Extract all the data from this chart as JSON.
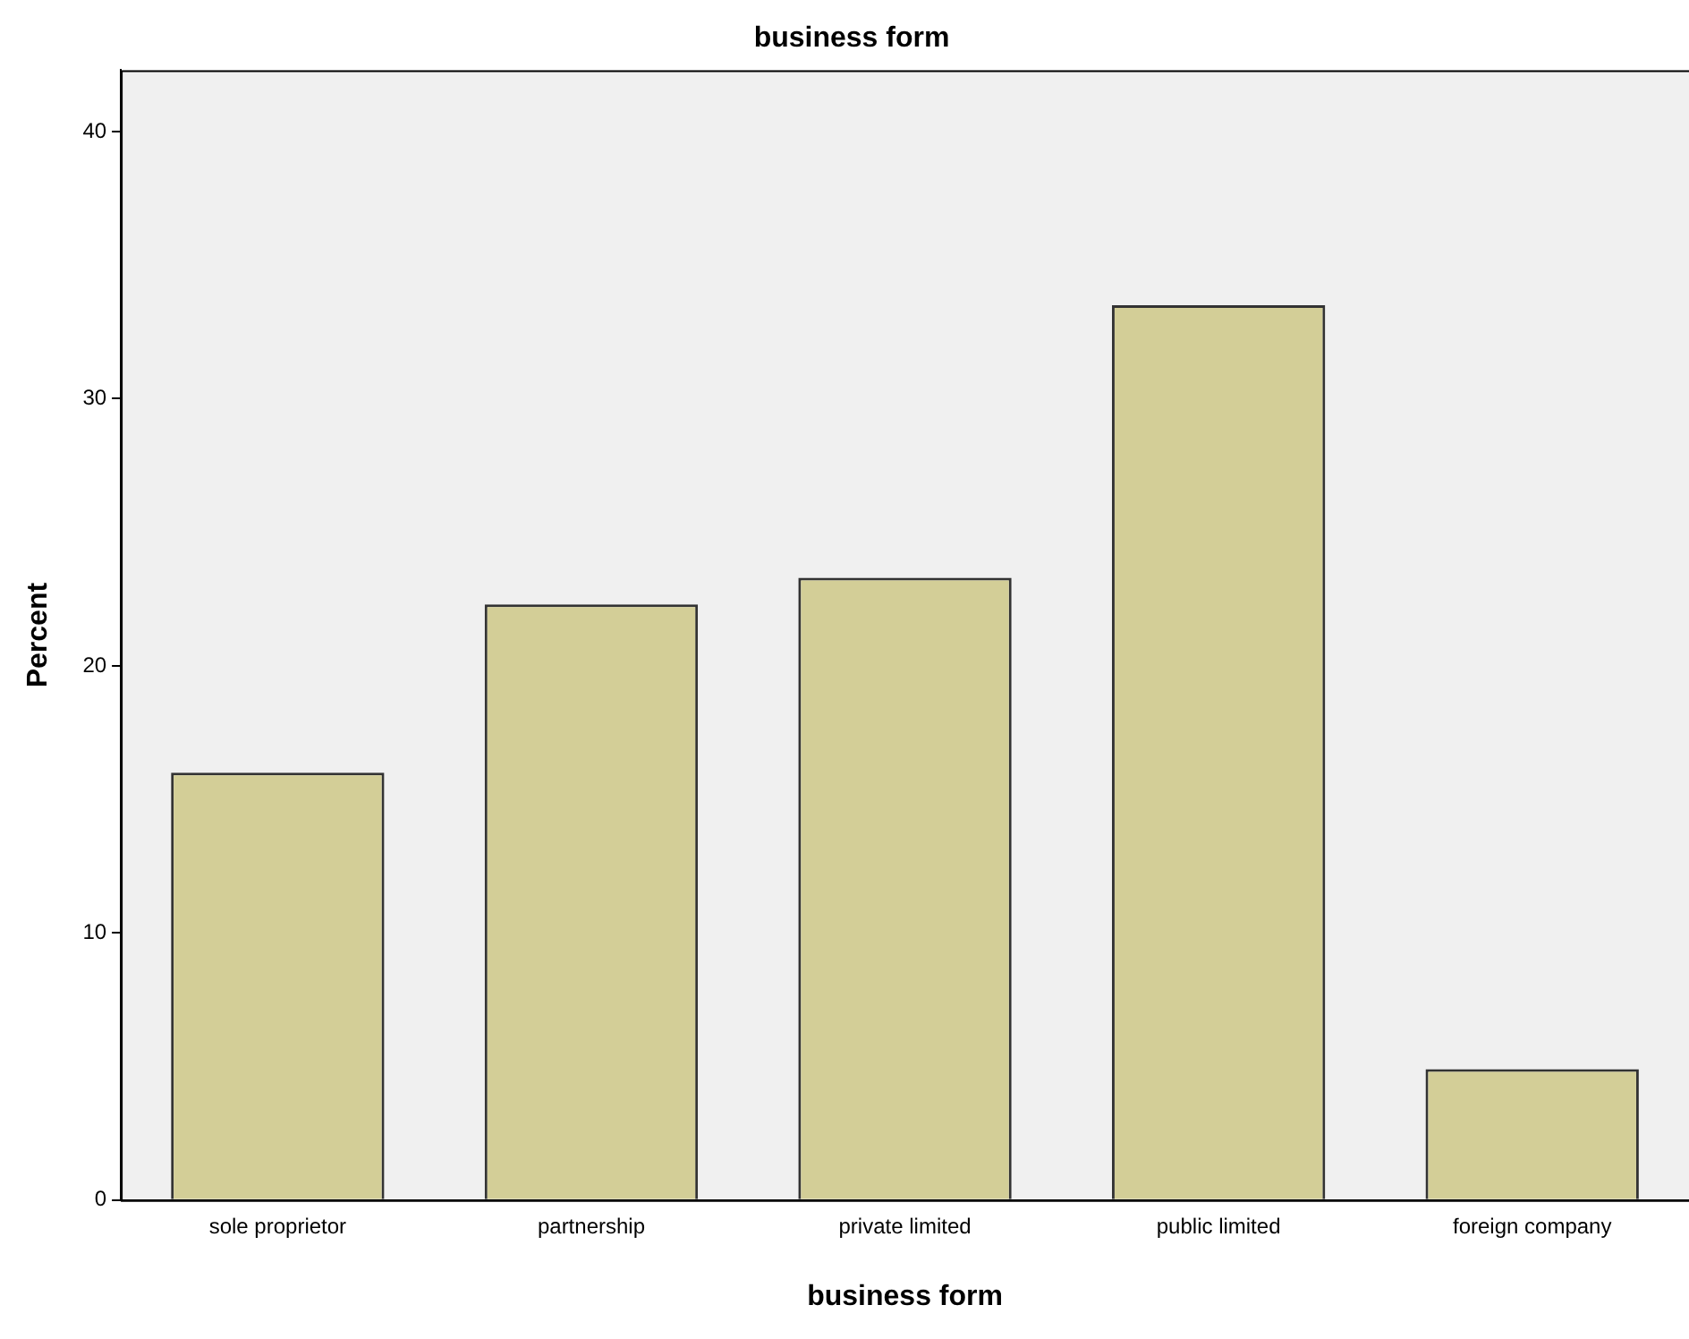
{
  "chart_data": {
    "type": "bar",
    "title": "business form",
    "xlabel": "business form",
    "ylabel": "Percent",
    "categories": [
      "sole proprietor",
      "partnership",
      "private limited",
      "public limited",
      "foreign company"
    ],
    "values": [
      16.0,
      22.3,
      23.3,
      33.5,
      4.9
    ],
    "color": "#d3ce97",
    "ylim": [
      0,
      42.3
    ],
    "yticks": [
      0,
      10,
      20,
      30,
      40
    ],
    "grid": false,
    "legend": false
  }
}
